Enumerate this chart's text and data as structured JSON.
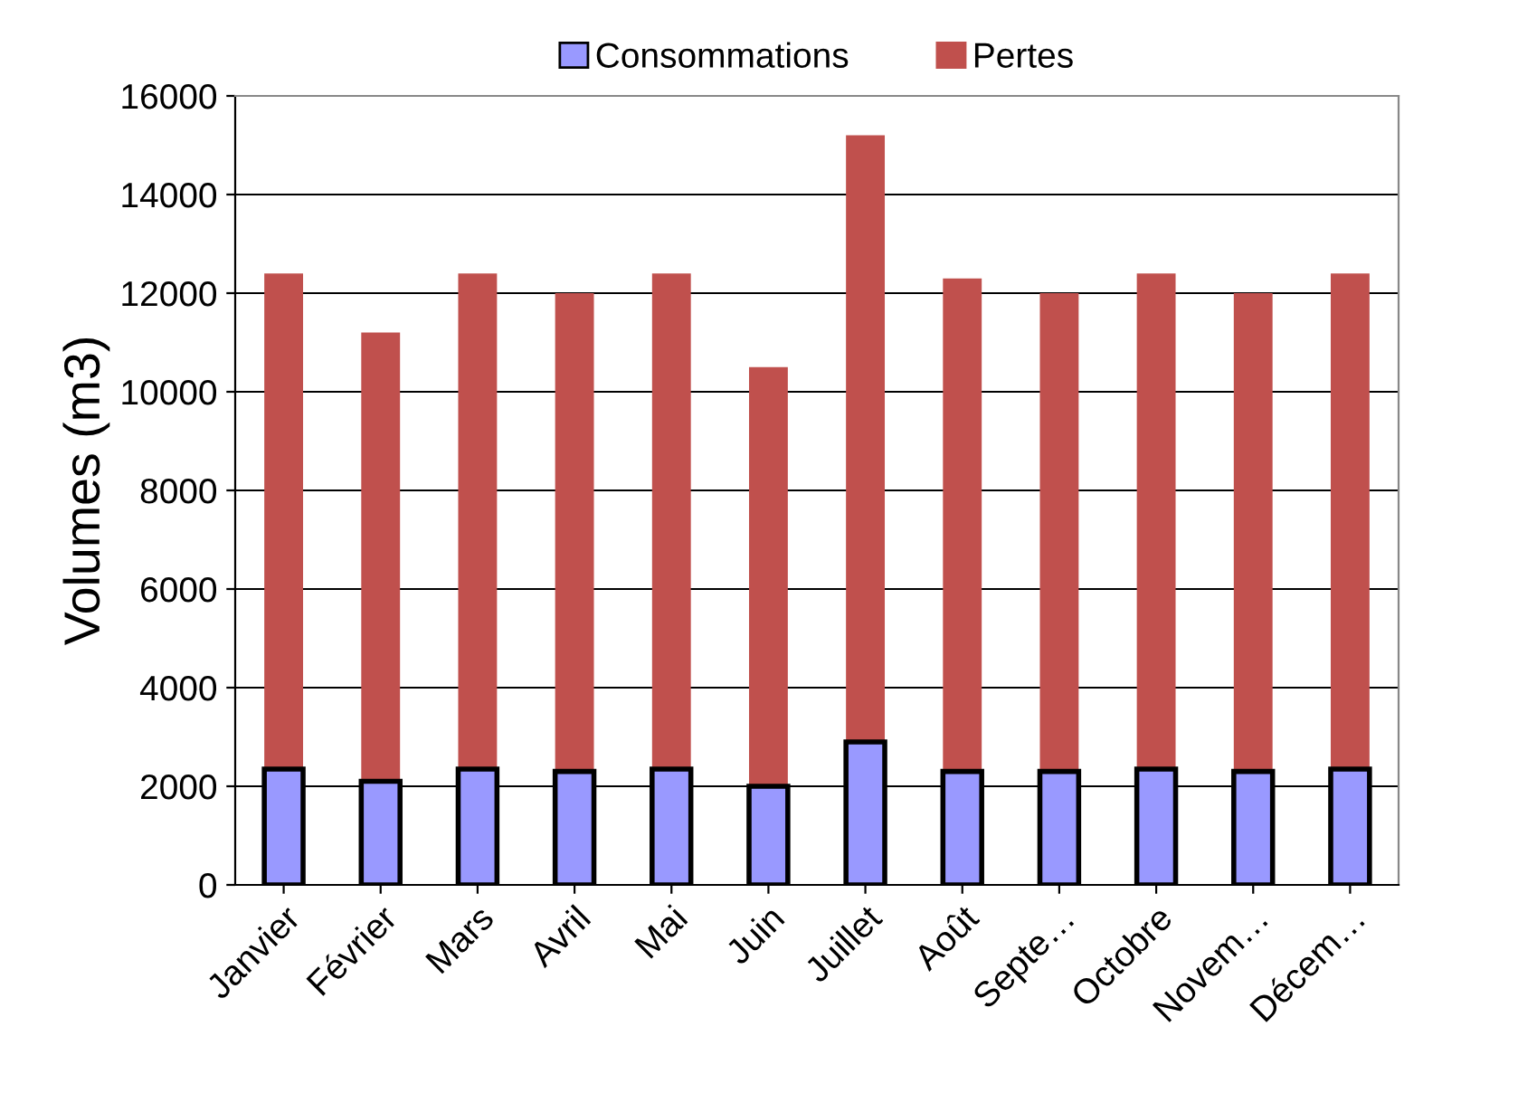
{
  "chart_data": {
    "type": "bar",
    "stacked": true,
    "ylabel": "Volumes (m3)",
    "categories": [
      "Janvier",
      "Février",
      "Mars",
      "Avril",
      "Mai",
      "Juin",
      "Juillet",
      "Août",
      "Septe…",
      "Octobre",
      "Novem…",
      "Décem…"
    ],
    "series": [
      {
        "name": "Consommations",
        "color": "#9999ff",
        "values": [
          2350,
          2100,
          2350,
          2300,
          2350,
          2000,
          2900,
          2300,
          2300,
          2350,
          2300,
          2350
        ]
      },
      {
        "name": "Pertes",
        "color": "#c0504d",
        "values": [
          10050,
          9100,
          10050,
          9700,
          10050,
          8500,
          12300,
          10000,
          9700,
          10050,
          9700,
          10050
        ]
      }
    ],
    "ylim": [
      0,
      16000
    ],
    "yticks": [
      0,
      2000,
      4000,
      6000,
      8000,
      10000,
      12000,
      14000,
      16000
    ],
    "grid": "y",
    "legend": "top"
  }
}
